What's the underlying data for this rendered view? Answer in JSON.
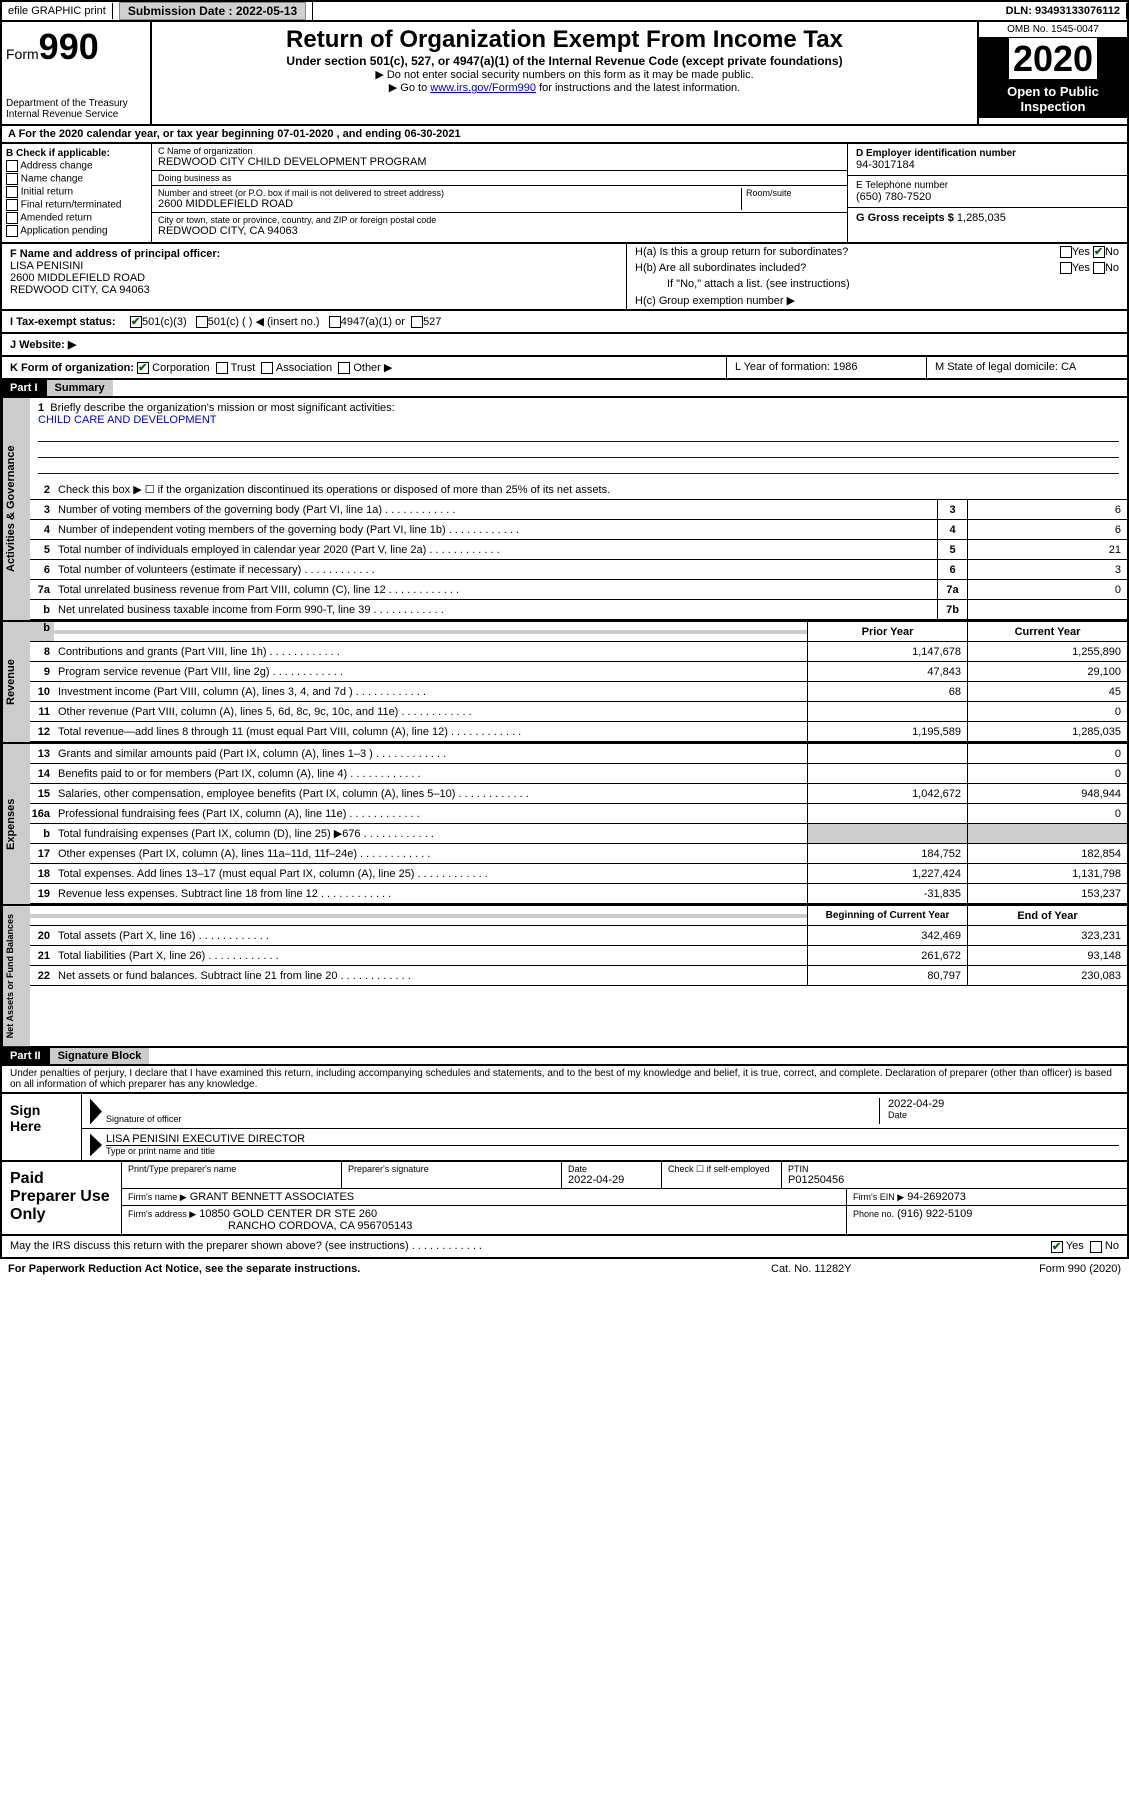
{
  "top": {
    "efile": "efile GRAPHIC print",
    "sub_label": "Submission Date : 2022-05-13",
    "dln": "DLN: 93493133076112"
  },
  "header": {
    "form": "Form",
    "form_num": "990",
    "dept": "Department of the Treasury\nInternal Revenue Service",
    "title": "Return of Organization Exempt From Income Tax",
    "sub": "Under section 501(c), 527, or 4947(a)(1) of the Internal Revenue Code (except private foundations)",
    "note1": "▶ Do not enter social security numbers on this form as it may be made public.",
    "note2_pre": "▶ Go to ",
    "note2_link": "www.irs.gov/Form990",
    "note2_post": " for instructions and the latest information.",
    "omb": "OMB No. 1545-0047",
    "year": "2020",
    "inspect": "Open to Public Inspection"
  },
  "section_a": "A For the 2020 calendar year, or tax year beginning 07-01-2020    , and ending 06-30-2021",
  "b": {
    "label": "B Check if applicable:",
    "items": [
      "Address change",
      "Name change",
      "Initial return",
      "Final return/terminated",
      "Amended return",
      "Application pending"
    ]
  },
  "c": {
    "name_label": "C Name of organization",
    "name": "REDWOOD CITY CHILD DEVELOPMENT PROGRAM",
    "dba_label": "Doing business as",
    "dba": "",
    "addr_label": "Number and street (or P.O. box if mail is not delivered to street address)",
    "room_label": "Room/suite",
    "addr": "2600 MIDDLEFIELD ROAD",
    "city_label": "City or town, state or province, country, and ZIP or foreign postal code",
    "city": "REDWOOD CITY, CA  94063"
  },
  "d": {
    "label": "D Employer identification number",
    "val": "94-3017184"
  },
  "e": {
    "label": "E Telephone number",
    "val": "(650) 780-7520"
  },
  "g": {
    "label": "G Gross receipts $",
    "val": "1,285,035"
  },
  "f": {
    "label": "F Name and address of principal officer:",
    "name": "LISA PENISINI",
    "addr1": "2600 MIDDLEFIELD ROAD",
    "addr2": "REDWOOD CITY, CA  94063"
  },
  "h": {
    "a": "H(a)  Is this a group return for subordinates?",
    "b": "H(b)  Are all subordinates included?",
    "b_note": "If \"No,\" attach a list. (see instructions)",
    "c": "H(c)  Group exemption number ▶"
  },
  "i": {
    "label": "I    Tax-exempt status:",
    "opts": [
      "501(c)(3)",
      "501(c) (  ) ◀ (insert no.)",
      "4947(a)(1) or",
      "527"
    ]
  },
  "j": "J    Website: ▶",
  "k": {
    "label": "K Form of organization:",
    "opts": [
      "Corporation",
      "Trust",
      "Association",
      "Other ▶"
    ]
  },
  "l": "L Year of formation: 1986",
  "m": "M State of legal domicile: CA",
  "part1": {
    "hdr": "Part I",
    "title": "Summary"
  },
  "summary": {
    "q1": "Briefly describe the organization's mission or most significant activities:",
    "q1_val": "CHILD CARE AND DEVELOPMENT",
    "q2": "Check this box ▶ ☐  if the organization discontinued its operations or disposed of more than 25% of its net assets.",
    "lines_gov": [
      {
        "n": "3",
        "d": "Number of voting members of the governing body (Part VI, line 1a)",
        "box": "3",
        "v": "6"
      },
      {
        "n": "4",
        "d": "Number of independent voting members of the governing body (Part VI, line 1b)",
        "box": "4",
        "v": "6"
      },
      {
        "n": "5",
        "d": "Total number of individuals employed in calendar year 2020 (Part V, line 2a)",
        "box": "5",
        "v": "21"
      },
      {
        "n": "6",
        "d": "Total number of volunteers (estimate if necessary)",
        "box": "6",
        "v": "3"
      },
      {
        "n": "7a",
        "d": "Total unrelated business revenue from Part VIII, column (C), line 12",
        "box": "7a",
        "v": "0"
      },
      {
        "n": "b",
        "d": "Net unrelated business taxable income from Form 990-T, line 39",
        "box": "7b",
        "v": ""
      }
    ],
    "hdr_prior": "Prior Year",
    "hdr_curr": "Current Year",
    "rev": [
      {
        "n": "8",
        "d": "Contributions and grants (Part VIII, line 1h)",
        "p": "1,147,678",
        "c": "1,255,890"
      },
      {
        "n": "9",
        "d": "Program service revenue (Part VIII, line 2g)",
        "p": "47,843",
        "c": "29,100"
      },
      {
        "n": "10",
        "d": "Investment income (Part VIII, column (A), lines 3, 4, and 7d )",
        "p": "68",
        "c": "45"
      },
      {
        "n": "11",
        "d": "Other revenue (Part VIII, column (A), lines 5, 6d, 8c, 9c, 10c, and 11e)",
        "p": "",
        "c": "0"
      },
      {
        "n": "12",
        "d": "Total revenue—add lines 8 through 11 (must equal Part VIII, column (A), line 12)",
        "p": "1,195,589",
        "c": "1,285,035"
      }
    ],
    "exp": [
      {
        "n": "13",
        "d": "Grants and similar amounts paid (Part IX, column (A), lines 1–3 )",
        "p": "",
        "c": "0"
      },
      {
        "n": "14",
        "d": "Benefits paid to or for members (Part IX, column (A), line 4)",
        "p": "",
        "c": "0"
      },
      {
        "n": "15",
        "d": "Salaries, other compensation, employee benefits (Part IX, column (A), lines 5–10)",
        "p": "1,042,672",
        "c": "948,944"
      },
      {
        "n": "16a",
        "d": "Professional fundraising fees (Part IX, column (A), line 11e)",
        "p": "",
        "c": "0"
      },
      {
        "n": "b",
        "d": "Total fundraising expenses (Part IX, column (D), line 25) ▶676",
        "p": "",
        "c": "",
        "shaded": true
      },
      {
        "n": "17",
        "d": "Other expenses (Part IX, column (A), lines 11a–11d, 11f–24e)",
        "p": "184,752",
        "c": "182,854"
      },
      {
        "n": "18",
        "d": "Total expenses. Add lines 13–17 (must equal Part IX, column (A), line 25)",
        "p": "1,227,424",
        "c": "1,131,798"
      },
      {
        "n": "19",
        "d": "Revenue less expenses. Subtract line 18 from line 12",
        "p": "-31,835",
        "c": "153,237"
      }
    ],
    "hdr_beg": "Beginning of Current Year",
    "hdr_end": "End of Year",
    "net": [
      {
        "n": "20",
        "d": "Total assets (Part X, line 16)",
        "p": "342,469",
        "c": "323,231"
      },
      {
        "n": "21",
        "d": "Total liabilities (Part X, line 26)",
        "p": "261,672",
        "c": "93,148"
      },
      {
        "n": "22",
        "d": "Net assets or fund balances. Subtract line 21 from line 20",
        "p": "80,797",
        "c": "230,083"
      }
    ]
  },
  "part2": {
    "hdr": "Part II",
    "title": "Signature Block"
  },
  "penalty": "Under penalties of perjury, I declare that I have examined this return, including accompanying schedules and statements, and to the best of my knowledge and belief, it is true, correct, and complete. Declaration of preparer (other than officer) is based on all information of which preparer has any knowledge.",
  "sign": {
    "label": "Sign Here",
    "sig_label": "Signature of officer",
    "date": "2022-04-29",
    "date_label": "Date",
    "name": "LISA PENISINI  EXECUTIVE DIRECTOR",
    "name_label": "Type or print name and title"
  },
  "prep": {
    "label": "Paid Preparer Use Only",
    "h1": "Print/Type preparer's name",
    "h2": "Preparer's signature",
    "h3": "Date",
    "h3_val": "2022-04-29",
    "h4": "Check ☐ if self-employed",
    "h5": "PTIN",
    "h5_val": "P01250456",
    "firm_label": "Firm's name    ▶",
    "firm": "GRANT BENNETT ASSOCIATES",
    "ein_label": "Firm's EIN ▶",
    "ein": "94-2692073",
    "addr_label": "Firm's address ▶",
    "addr1": "10850 GOLD CENTER DR STE 260",
    "addr2": "RANCHO CORDOVA, CA  956705143",
    "phone_label": "Phone no.",
    "phone": "(916) 922-5109"
  },
  "discuss": "May the IRS discuss this return with the preparer shown above? (see instructions)",
  "paperwork": "For Paperwork Reduction Act Notice, see the separate instructions.",
  "catno": "Cat. No. 11282Y",
  "form_foot": "Form 990 (2020)",
  "colors": {
    "black": "#000000",
    "link": "#0000cc",
    "shade": "#cccccc",
    "btn": "#d0d0d0"
  }
}
